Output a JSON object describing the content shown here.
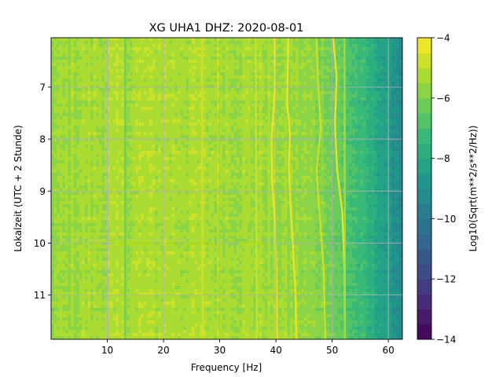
{
  "chart_data": {
    "type": "heatmap",
    "title": "XG UHA1  DHZ: 2020-08-01",
    "xlabel": "Frequency [Hz]",
    "ylabel": "Lokalzeit (UTC + 2 Stunde)",
    "xlim": [
      0,
      62.5
    ],
    "ylim": [
      11.85,
      6.05
    ],
    "x_ticks": [
      10,
      20,
      30,
      40,
      50,
      60
    ],
    "y_ticks": [
      7,
      8,
      9,
      10,
      11
    ],
    "grid": true,
    "colorbar": {
      "label": "Log10(Sqrt(m**2/s**2/Hz))",
      "range": [
        -14,
        -4
      ],
      "ticks": [
        -4,
        -6,
        -8,
        -10,
        -12,
        -14
      ],
      "levels": 20,
      "colormap": "viridis"
    },
    "background_level_by_frequency": {
      "x": [
        0,
        5,
        10,
        20,
        30,
        38,
        44,
        49,
        52,
        55,
        58,
        60,
        62.5
      ],
      "values": [
        -5.6,
        -5.4,
        -5.3,
        -5.2,
        -5.3,
        -5.4,
        -5.6,
        -5.9,
        -6.6,
        -7.3,
        -8.0,
        -8.6,
        -9.2
      ]
    },
    "spectral_lines": [
      {
        "path": [
          [
            39.8,
            6.05
          ],
          [
            39.9,
            6.9
          ],
          [
            39.6,
            7.4
          ],
          [
            39.2,
            8.0
          ],
          [
            39.3,
            8.8
          ],
          [
            39.8,
            9.5
          ],
          [
            40.1,
            10.5
          ],
          [
            40.2,
            11.85
          ]
        ],
        "level": -4.3
      },
      {
        "path": [
          [
            42.2,
            6.05
          ],
          [
            42.0,
            7.3
          ],
          [
            42.5,
            7.9
          ],
          [
            42.3,
            8.5
          ],
          [
            42.6,
            9.3
          ],
          [
            43.0,
            10.0
          ],
          [
            43.5,
            11.0
          ],
          [
            43.6,
            11.85
          ]
        ],
        "level": -4.5
      },
      {
        "path": [
          [
            47.2,
            6.05
          ],
          [
            47.5,
            6.9
          ],
          [
            48.0,
            7.8
          ],
          [
            47.2,
            8.6
          ],
          [
            47.8,
            9.5
          ],
          [
            48.5,
            10.5
          ],
          [
            48.8,
            11.85
          ]
        ],
        "level": -4.6
      },
      {
        "path": [
          [
            50.2,
            6.05
          ],
          [
            50.8,
            6.8
          ],
          [
            50.5,
            7.7
          ],
          [
            50.9,
            8.6
          ],
          [
            51.8,
            9.4
          ],
          [
            52.2,
            10.5
          ],
          [
            52.3,
            11.85
          ]
        ],
        "level": -4.4
      },
      {
        "path": [
          [
            52.2,
            6.05
          ],
          [
            52.3,
            11.85
          ]
        ],
        "level": -5.5
      },
      {
        "path": [
          [
            36.4,
            6.05
          ],
          [
            36.6,
            11.85
          ]
        ],
        "level": -4.9
      },
      {
        "path": [
          [
            26.8,
            6.05
          ],
          [
            27.0,
            11.85
          ]
        ],
        "level": -5.0
      },
      {
        "path": [
          [
            13.2,
            6.05
          ],
          [
            13.2,
            11.85
          ]
        ],
        "level": -6.2
      }
    ]
  }
}
